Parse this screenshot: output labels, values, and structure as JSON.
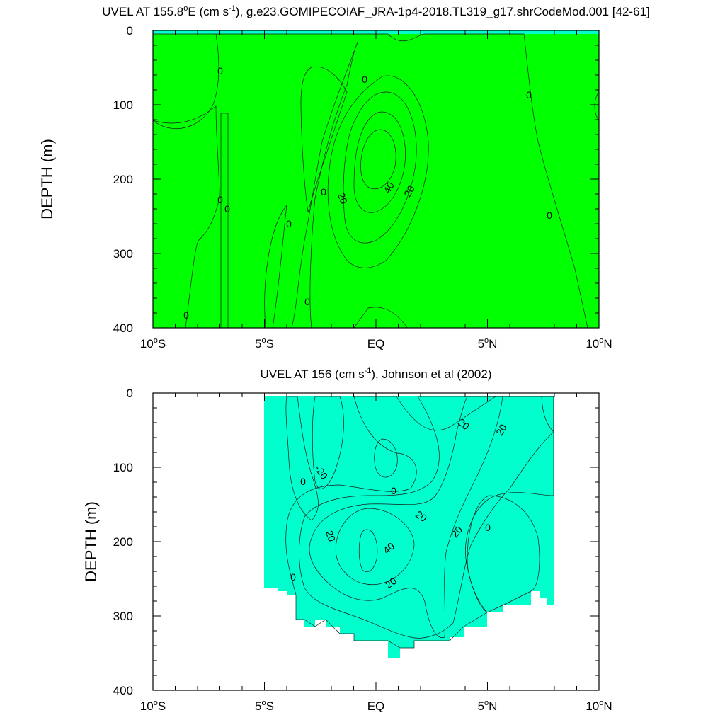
{
  "chart_data": [
    {
      "type": "contour",
      "title_pre": "UVEL AT 155.8",
      "title_sup1": "o",
      "title_mid": "E (cm s",
      "title_sup2": "-1",
      "title_post": "), g.e23.GOMIPECOIAF_JRA-1p4-2018.TL319_g17.shrCodeMod.001 [42-61]",
      "ylabel": "DEPTH (m)",
      "xlabel": "",
      "xlim": [
        -10,
        10
      ],
      "ylim": [
        0,
        400
      ],
      "y_reversed": true,
      "x_ticks": [
        -10,
        -5,
        0,
        5,
        10
      ],
      "x_tick_labels": [
        {
          "num": "10",
          "sup": "o",
          "suf": "S"
        },
        {
          "num": "5",
          "sup": "o",
          "suf": "S"
        },
        {
          "num": "EQ",
          "sup": "",
          "suf": ""
        },
        {
          "num": "5",
          "sup": "o",
          "suf": "N"
        },
        {
          "num": "10",
          "sup": "o",
          "suf": "N"
        }
      ],
      "y_ticks": [
        0,
        100,
        200,
        300,
        400
      ],
      "y_tick_labels": [
        "0",
        "100",
        "200",
        "300",
        "400"
      ],
      "contour_levels": [
        -20,
        -10,
        0,
        10,
        20,
        30,
        40,
        50
      ],
      "colors": {
        "lt_neg20": "#00ffff",
        "neg20_neg10": "#00ffff",
        "neg10_0": "#00ffcc",
        "0_10": "#00ff00",
        "10_20": "#80ff00",
        "20_30": "#ffff00",
        "30_40": "#ffcc33",
        "40_50": "#ff9933"
      },
      "contour_labels": [
        "0",
        "0",
        "0",
        "0",
        "0",
        "0",
        "0",
        "0",
        "0",
        "20",
        "40",
        "20",
        "0"
      ],
      "jet_core": {
        "lat": -0.3,
        "depth": 180,
        "max_cm_s": 45
      }
    },
    {
      "type": "contour",
      "title_pre": "UVEL AT 156 (cm s",
      "title_sup": "-1",
      "title_post": "), Johnson et al (2002)",
      "ylabel": "DEPTH (m)",
      "xlabel": "",
      "xlim": [
        -10,
        10
      ],
      "ylim": [
        0,
        400
      ],
      "y_reversed": true,
      "data_lat_range": [
        -5,
        8
      ],
      "x_ticks": [
        -10,
        -5,
        0,
        5,
        10
      ],
      "x_tick_labels": [
        {
          "num": "10",
          "sup": "o",
          "suf": "S"
        },
        {
          "num": "5",
          "sup": "o",
          "suf": "S"
        },
        {
          "num": "EQ",
          "sup": "",
          "suf": ""
        },
        {
          "num": "5",
          "sup": "o",
          "suf": "N"
        },
        {
          "num": "10",
          "sup": "o",
          "suf": "N"
        }
      ],
      "y_ticks": [
        0,
        100,
        200,
        300,
        400
      ],
      "y_tick_labels": [
        "0",
        "100",
        "200",
        "300",
        "400"
      ],
      "contour_levels": [
        -20,
        -10,
        0,
        10,
        20,
        30,
        40,
        50
      ],
      "contour_labels": [
        "-20",
        "0",
        "0",
        "0",
        "20",
        "20",
        "20",
        "20",
        "40",
        "20",
        "20",
        "0"
      ],
      "jet_core": {
        "lat": -0.5,
        "depth": 205,
        "max_cm_s": 50
      }
    }
  ]
}
